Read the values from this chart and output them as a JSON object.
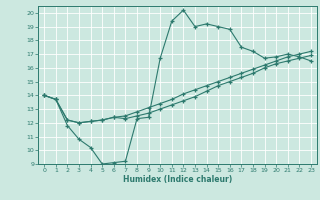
{
  "xlabel": "Humidex (Indice chaleur)",
  "bg_color": "#cce8e0",
  "line_color": "#2d7a6e",
  "xlim": [
    -0.5,
    23.5
  ],
  "ylim": [
    9,
    20.5
  ],
  "xticks": [
    0,
    1,
    2,
    3,
    4,
    5,
    6,
    7,
    8,
    9,
    10,
    11,
    12,
    13,
    14,
    15,
    16,
    17,
    18,
    19,
    20,
    21,
    22,
    23
  ],
  "yticks": [
    9,
    10,
    11,
    12,
    13,
    14,
    15,
    16,
    17,
    18,
    19,
    20
  ],
  "line1_x": [
    0,
    1,
    2,
    3,
    4,
    5,
    6,
    7,
    8,
    9,
    10,
    11,
    12,
    13,
    14,
    15,
    16,
    17,
    18,
    19,
    20,
    21,
    22,
    23
  ],
  "line1_y": [
    14.0,
    13.7,
    11.8,
    10.8,
    10.2,
    9.0,
    9.1,
    9.2,
    12.3,
    12.4,
    16.7,
    19.4,
    20.2,
    19.0,
    19.2,
    19.0,
    18.8,
    17.5,
    17.2,
    16.7,
    16.8,
    17.0,
    16.8,
    16.5
  ],
  "line2_x": [
    0,
    1,
    2,
    3,
    4,
    5,
    6,
    7,
    8,
    9,
    10,
    11,
    12,
    13,
    14,
    15,
    16,
    17,
    18,
    19,
    20,
    21,
    22,
    23
  ],
  "line2_y": [
    14.0,
    13.7,
    12.2,
    12.0,
    12.1,
    12.2,
    12.4,
    12.3,
    12.5,
    12.7,
    13.0,
    13.3,
    13.6,
    13.9,
    14.3,
    14.7,
    15.0,
    15.3,
    15.6,
    16.0,
    16.3,
    16.5,
    16.7,
    16.9
  ],
  "line3_x": [
    0,
    1,
    2,
    3,
    4,
    5,
    6,
    7,
    8,
    9,
    10,
    11,
    12,
    13,
    14,
    15,
    16,
    17,
    18,
    19,
    20,
    21,
    22,
    23
  ],
  "line3_y": [
    14.0,
    13.7,
    12.2,
    12.0,
    12.1,
    12.2,
    12.4,
    12.5,
    12.8,
    13.1,
    13.4,
    13.7,
    14.1,
    14.4,
    14.7,
    15.0,
    15.3,
    15.6,
    15.9,
    16.2,
    16.5,
    16.8,
    17.0,
    17.2
  ]
}
